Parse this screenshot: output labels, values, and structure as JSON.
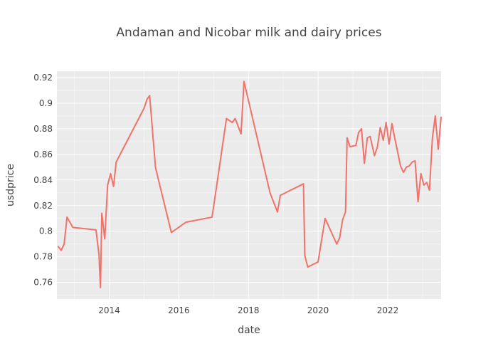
{
  "chart_data": {
    "type": "line",
    "title": "Andaman and Nicobar milk and dairy prices",
    "xlabel": "date",
    "ylabel": "usdprice",
    "xlim": [
      "2012-07-01",
      "2023-07-15"
    ],
    "ylim": [
      0.747,
      0.925
    ],
    "x_ticks": [
      "2014",
      "2016",
      "2018",
      "2020",
      "2022"
    ],
    "y_ticks": [
      "0.76",
      "0.78",
      "0.8",
      "0.82",
      "0.84",
      "0.86",
      "0.88",
      "0.9",
      "0.92"
    ],
    "grid": true,
    "legend": false,
    "colors": {
      "line": "#f07269",
      "plot_bg": "#ebebeb"
    },
    "series": [
      {
        "x": [
          "2012-07-15",
          "2012-08-15",
          "2012-09-15",
          "2012-10-15",
          "2012-12-15",
          "2013-08-15",
          "2013-09-15",
          "2013-10-01",
          "2013-10-15",
          "2013-11-15",
          "2013-12-15",
          "2014-01-15",
          "2014-02-15",
          "2014-03-15",
          "2015-01-01",
          "2015-02-01",
          "2015-03-01",
          "2015-05-01",
          "2015-06-15",
          "2015-10-15",
          "2016-03-15",
          "2016-12-15",
          "2017-05-15",
          "2017-07-15",
          "2017-08-15",
          "2017-10-15",
          "2017-11-15",
          "2018-08-15",
          "2018-11-01",
          "2018-12-01",
          "2019-08-01",
          "2019-08-15",
          "2019-09-15",
          "2020-01-01",
          "2020-03-15",
          "2020-07-15",
          "2020-08-15",
          "2020-09-15",
          "2020-10-15",
          "2020-11-01",
          "2020-12-01",
          "2021-02-01",
          "2021-03-01",
          "2021-04-01",
          "2021-05-01",
          "2021-06-01",
          "2021-07-01",
          "2021-08-15",
          "2021-09-15",
          "2021-10-15",
          "2021-11-15",
          "2021-12-15",
          "2022-01-15",
          "2022-02-15",
          "2022-03-15",
          "2022-04-15",
          "2022-05-15",
          "2022-06-15",
          "2022-07-15",
          "2022-08-15",
          "2022-09-15",
          "2022-10-15",
          "2022-11-15",
          "2022-12-15",
          "2023-01-15",
          "2023-02-15",
          "2023-03-15",
          "2023-04-15",
          "2023-05-15",
          "2023-06-15",
          "2023-07-15"
        ],
        "y": [
          0.788,
          0.785,
          0.79,
          0.811,
          0.803,
          0.801,
          0.782,
          0.756,
          0.814,
          0.794,
          0.836,
          0.845,
          0.835,
          0.854,
          0.896,
          0.903,
          0.906,
          0.85,
          0.836,
          0.799,
          0.807,
          0.811,
          0.888,
          0.885,
          0.888,
          0.876,
          0.917,
          0.83,
          0.815,
          0.828,
          0.837,
          0.781,
          0.772,
          0.776,
          0.81,
          0.79,
          0.795,
          0.809,
          0.815,
          0.873,
          0.866,
          0.867,
          0.877,
          0.88,
          0.853,
          0.873,
          0.874,
          0.859,
          0.866,
          0.881,
          0.871,
          0.885,
          0.868,
          0.884,
          0.873,
          0.862,
          0.851,
          0.846,
          0.85,
          0.851,
          0.854,
          0.855,
          0.823,
          0.845,
          0.836,
          0.838,
          0.832,
          0.873,
          0.89,
          0.864,
          0.889
        ]
      }
    ]
  }
}
